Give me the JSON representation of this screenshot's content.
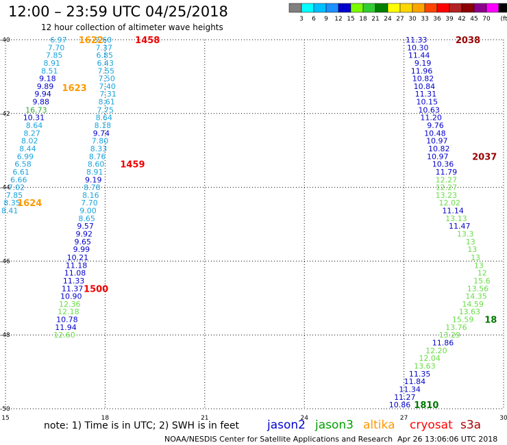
{
  "header": {
    "title": "12:00 – 23:59 UTC 04/25/2018",
    "subtitle": "12 hour collection of altimeter wave heights"
  },
  "color_scale": {
    "labels": [
      "3",
      "6",
      "9",
      "12",
      "15",
      "18",
      "21",
      "24",
      "27",
      "30",
      "33",
      "36",
      "39",
      "42",
      "45",
      "70"
    ],
    "unit": "(ft)",
    "colors": [
      "#808080",
      "#00ffff",
      "#00bfff",
      "#1e90ff",
      "#0000cd",
      "#7cfc00",
      "#32cd32",
      "#008000",
      "#ffff00",
      "#ffd700",
      "#ffa500",
      "#ff4500",
      "#ff0000",
      "#b22222",
      "#8b0000",
      "#8b008b",
      "#ff00ff",
      "#000000"
    ]
  },
  "footer": {
    "note": "note: 1) Time is in UTC; 2) SWH is in feet",
    "credit": "NOAA/NESDIS Center for Satellite Applications and Research",
    "timestamp": "Apr 26 13:06:06 UTC 2018"
  },
  "chart_data": {
    "type": "scatter",
    "xlim": [
      15,
      30
    ],
    "ylim": [
      -50,
      -40
    ],
    "x_ticks": [
      15,
      18,
      21,
      24,
      27,
      30
    ],
    "y_ticks": [
      -40,
      -42,
      -44,
      -46,
      -48,
      -50
    ],
    "grid": true,
    "legend_position": "bottom",
    "series": [
      {
        "name": "jason2",
        "color": "#0000cc"
      },
      {
        "name": "jason3",
        "color": "#00a000"
      },
      {
        "name": "altika",
        "color": "#ff9900"
      },
      {
        "name": "cryosat",
        "color": "#ff0000"
      },
      {
        "name": "s3a",
        "color": "#aa0000"
      }
    ],
    "points": [
      {
        "x": 16.85,
        "y": -40.0,
        "v": "6.97",
        "c": "#1aa3dd"
      },
      {
        "x": 16.78,
        "y": -40.21,
        "v": "7.70",
        "c": "#1aa3dd"
      },
      {
        "x": 16.72,
        "y": -40.42,
        "v": "7.85",
        "c": "#1aa3dd"
      },
      {
        "x": 16.65,
        "y": -40.63,
        "v": "8.91",
        "c": "#1aa3dd"
      },
      {
        "x": 16.58,
        "y": -40.84,
        "v": "8.51",
        "c": "#1aa3dd"
      },
      {
        "x": 16.52,
        "y": -41.05,
        "v": "9.18",
        "c": "#0000cc"
      },
      {
        "x": 16.45,
        "y": -41.26,
        "v": "9.89",
        "c": "#0000cc"
      },
      {
        "x": 16.38,
        "y": -41.47,
        "v": "9.94",
        "c": "#0000cc"
      },
      {
        "x": 16.32,
        "y": -41.68,
        "v": "9.88",
        "c": "#0000cc"
      },
      {
        "x": 16.25,
        "y": -41.9,
        "v": "16.73",
        "c": "#33aa33"
      },
      {
        "x": 16.18,
        "y": -42.11,
        "v": "10.31",
        "c": "#0000cc"
      },
      {
        "x": 16.12,
        "y": -42.32,
        "v": "8.64",
        "c": "#1aa3dd"
      },
      {
        "x": 16.05,
        "y": -42.53,
        "v": "8.27",
        "c": "#1aa3dd"
      },
      {
        "x": 15.98,
        "y": -42.74,
        "v": "8.02",
        "c": "#1aa3dd"
      },
      {
        "x": 15.92,
        "y": -42.95,
        "v": "8.44",
        "c": "#1aa3dd"
      },
      {
        "x": 15.85,
        "y": -43.16,
        "v": "6.99",
        "c": "#1aa3dd"
      },
      {
        "x": 15.78,
        "y": -43.37,
        "v": "6.58",
        "c": "#1aa3dd"
      },
      {
        "x": 15.72,
        "y": -43.58,
        "v": "6.61",
        "c": "#1aa3dd"
      },
      {
        "x": 15.65,
        "y": -43.79,
        "v": "6.66",
        "c": "#1aa3dd"
      },
      {
        "x": 15.58,
        "y": -44.0,
        "v": "7.02",
        "c": "#1aa3dd"
      },
      {
        "x": 15.52,
        "y": -44.21,
        "v": "7.85",
        "c": "#1aa3dd"
      },
      {
        "x": 15.45,
        "y": -44.42,
        "v": "8.35",
        "c": "#1aa3dd"
      },
      {
        "x": 15.38,
        "y": -44.63,
        "v": "8.41",
        "c": "#1aa3dd"
      },
      {
        "x": 18.2,
        "y": -40.0,
        "v": "7.60",
        "c": "#1aa3dd"
      },
      {
        "x": 18.22,
        "y": -40.21,
        "v": "7.37",
        "c": "#1aa3dd"
      },
      {
        "x": 18.24,
        "y": -40.42,
        "v": "6.85",
        "c": "#1aa3dd"
      },
      {
        "x": 18.26,
        "y": -40.63,
        "v": "6.43",
        "c": "#1aa3dd"
      },
      {
        "x": 18.28,
        "y": -40.84,
        "v": "7.55",
        "c": "#1aa3dd"
      },
      {
        "x": 18.3,
        "y": -41.05,
        "v": "7.50",
        "c": "#1aa3dd"
      },
      {
        "x": 18.32,
        "y": -41.26,
        "v": "7.40",
        "c": "#1aa3dd"
      },
      {
        "x": 18.34,
        "y": -41.47,
        "v": "7.31",
        "c": "#1aa3dd"
      },
      {
        "x": 18.3,
        "y": -41.68,
        "v": "8.61",
        "c": "#1aa3dd"
      },
      {
        "x": 18.26,
        "y": -41.9,
        "v": "7.75",
        "c": "#1aa3dd"
      },
      {
        "x": 18.22,
        "y": -42.11,
        "v": "8.64",
        "c": "#1aa3dd"
      },
      {
        "x": 18.18,
        "y": -42.32,
        "v": "8.18",
        "c": "#1aa3dd"
      },
      {
        "x": 18.14,
        "y": -42.53,
        "v": "9.74",
        "c": "#0000cc"
      },
      {
        "x": 18.1,
        "y": -42.74,
        "v": "7.80",
        "c": "#1aa3dd"
      },
      {
        "x": 18.06,
        "y": -42.95,
        "v": "8.33",
        "c": "#1aa3dd"
      },
      {
        "x": 18.02,
        "y": -43.16,
        "v": "8.76",
        "c": "#1aa3dd"
      },
      {
        "x": 17.98,
        "y": -43.37,
        "v": "8.60",
        "c": "#1aa3dd"
      },
      {
        "x": 17.94,
        "y": -43.58,
        "v": "8.91",
        "c": "#1aa3dd"
      },
      {
        "x": 17.9,
        "y": -43.79,
        "v": "9.19",
        "c": "#0000cc"
      },
      {
        "x": 17.86,
        "y": -44.0,
        "v": "8.78",
        "c": "#1aa3dd"
      },
      {
        "x": 17.82,
        "y": -44.21,
        "v": "8.16",
        "c": "#1aa3dd"
      },
      {
        "x": 17.78,
        "y": -44.42,
        "v": "7.70",
        "c": "#1aa3dd"
      },
      {
        "x": 17.74,
        "y": -44.63,
        "v": "9.00",
        "c": "#1aa3dd"
      },
      {
        "x": 17.7,
        "y": -44.84,
        "v": "8.65",
        "c": "#1aa3dd"
      },
      {
        "x": 17.66,
        "y": -45.05,
        "v": "9.57",
        "c": "#0000cc"
      },
      {
        "x": 17.62,
        "y": -45.26,
        "v": "9.92",
        "c": "#0000cc"
      },
      {
        "x": 17.58,
        "y": -45.47,
        "v": "9.65",
        "c": "#0000cc"
      },
      {
        "x": 17.54,
        "y": -45.68,
        "v": "9.99",
        "c": "#0000cc"
      },
      {
        "x": 17.5,
        "y": -45.9,
        "v": "10.21",
        "c": "#0000cc"
      },
      {
        "x": 17.46,
        "y": -46.11,
        "v": "11.18",
        "c": "#0000cc"
      },
      {
        "x": 17.42,
        "y": -46.32,
        "v": "11.08",
        "c": "#0000cc"
      },
      {
        "x": 17.38,
        "y": -46.53,
        "v": "11.33",
        "c": "#0000cc"
      },
      {
        "x": 17.34,
        "y": -46.74,
        "v": "11.37",
        "c": "#0000cc"
      },
      {
        "x": 17.3,
        "y": -46.95,
        "v": "10.90",
        "c": "#0000cc"
      },
      {
        "x": 17.26,
        "y": -47.16,
        "v": "12.36",
        "c": "#66dd44"
      },
      {
        "x": 17.22,
        "y": -47.37,
        "v": "12.18",
        "c": "#66dd44"
      },
      {
        "x": 17.18,
        "y": -47.58,
        "v": "10.78",
        "c": "#0000cc"
      },
      {
        "x": 17.14,
        "y": -47.79,
        "v": "11.94",
        "c": "#0000cc"
      },
      {
        "x": 17.1,
        "y": -48.0,
        "v": "12.60",
        "c": "#66dd44"
      },
      {
        "x": 27.7,
        "y": -40.0,
        "v": "11.33",
        "c": "#0000cc"
      },
      {
        "x": 27.74,
        "y": -40.21,
        "v": "10.30",
        "c": "#0000cc"
      },
      {
        "x": 27.78,
        "y": -40.42,
        "v": "11.44",
        "c": "#0000cc"
      },
      {
        "x": 27.82,
        "y": -40.63,
        "v": "9.19",
        "c": "#0000cc"
      },
      {
        "x": 27.86,
        "y": -40.84,
        "v": "11.96",
        "c": "#0000cc"
      },
      {
        "x": 27.9,
        "y": -41.05,
        "v": "10.82",
        "c": "#0000cc"
      },
      {
        "x": 27.94,
        "y": -41.26,
        "v": "10.84",
        "c": "#0000cc"
      },
      {
        "x": 27.98,
        "y": -41.47,
        "v": "11.31",
        "c": "#0000cc"
      },
      {
        "x": 28.02,
        "y": -41.68,
        "v": "10.15",
        "c": "#0000cc"
      },
      {
        "x": 28.08,
        "y": -41.9,
        "v": "10.63",
        "c": "#0000cc"
      },
      {
        "x": 28.14,
        "y": -42.11,
        "v": "11.20",
        "c": "#0000cc"
      },
      {
        "x": 28.2,
        "y": -42.32,
        "v": "9.76",
        "c": "#0000cc"
      },
      {
        "x": 28.26,
        "y": -42.53,
        "v": "10.48",
        "c": "#0000cc"
      },
      {
        "x": 28.32,
        "y": -42.74,
        "v": "10.97",
        "c": "#0000cc"
      },
      {
        "x": 28.38,
        "y": -42.95,
        "v": "10.82",
        "c": "#0000cc"
      },
      {
        "x": 28.34,
        "y": -43.16,
        "v": "10.97",
        "c": "#0000cc"
      },
      {
        "x": 28.5,
        "y": -43.37,
        "v": "10.36",
        "c": "#0000cc"
      },
      {
        "x": 28.6,
        "y": -43.58,
        "v": "11.79",
        "c": "#0000cc"
      },
      {
        "x": 28.6,
        "y": -43.79,
        "v": "12.27",
        "c": "#66dd44"
      },
      {
        "x": 28.6,
        "y": -44.0,
        "v": "12.27",
        "c": "#66dd44"
      },
      {
        "x": 28.6,
        "y": -44.21,
        "v": "13.23",
        "c": "#66dd44"
      },
      {
        "x": 28.7,
        "y": -44.42,
        "v": "12.02",
        "c": "#66dd44"
      },
      {
        "x": 28.8,
        "y": -44.63,
        "v": "11.14",
        "c": "#0000cc"
      },
      {
        "x": 28.9,
        "y": -44.84,
        "v": "13.13",
        "c": "#66dd44"
      },
      {
        "x": 29.0,
        "y": -45.05,
        "v": "11.47",
        "c": "#0000cc"
      },
      {
        "x": 29.1,
        "y": -45.26,
        "v": "13.3",
        "c": "#66dd44"
      },
      {
        "x": 29.15,
        "y": -45.47,
        "v": "13",
        "c": "#66dd44"
      },
      {
        "x": 29.2,
        "y": -45.68,
        "v": "13",
        "c": "#66dd44"
      },
      {
        "x": 29.3,
        "y": -45.9,
        "v": "13",
        "c": "#66dd44"
      },
      {
        "x": 29.4,
        "y": -46.11,
        "v": "13",
        "c": "#66dd44"
      },
      {
        "x": 29.5,
        "y": -46.32,
        "v": "12",
        "c": "#66dd44"
      },
      {
        "x": 29.6,
        "y": -46.53,
        "v": "15.6",
        "c": "#66dd44"
      },
      {
        "x": 29.55,
        "y": -46.74,
        "v": "13.56",
        "c": "#66dd44"
      },
      {
        "x": 29.5,
        "y": -46.95,
        "v": "14.35",
        "c": "#66dd44"
      },
      {
        "x": 29.4,
        "y": -47.16,
        "v": "14.59",
        "c": "#66dd44"
      },
      {
        "x": 29.3,
        "y": -47.37,
        "v": "13.63",
        "c": "#66dd44"
      },
      {
        "x": 29.1,
        "y": -47.58,
        "v": "15.59",
        "c": "#66dd44"
      },
      {
        "x": 28.9,
        "y": -47.79,
        "v": "13.76",
        "c": "#66dd44"
      },
      {
        "x": 28.7,
        "y": -48.0,
        "v": "13.29",
        "c": "#66dd44"
      },
      {
        "x": 28.5,
        "y": -48.21,
        "v": "11.86",
        "c": "#0000cc"
      },
      {
        "x": 28.3,
        "y": -48.42,
        "v": "12.20",
        "c": "#66dd44"
      },
      {
        "x": 28.1,
        "y": -48.63,
        "v": "12.04",
        "c": "#66dd44"
      },
      {
        "x": 27.95,
        "y": -48.84,
        "v": "13.63",
        "c": "#66dd44"
      },
      {
        "x": 27.8,
        "y": -49.05,
        "v": "11.35",
        "c": "#0000cc"
      },
      {
        "x": 27.65,
        "y": -49.26,
        "v": "11.84",
        "c": "#0000cc"
      },
      {
        "x": 27.5,
        "y": -49.47,
        "v": "11.34",
        "c": "#0000cc"
      },
      {
        "x": 27.35,
        "y": -49.68,
        "v": "11.27",
        "c": "#0000cc"
      },
      {
        "x": 27.2,
        "y": -49.89,
        "v": "10.86",
        "c": "#0000cc"
      }
    ],
    "time_labels": [
      {
        "x": 17.95,
        "y": -40.0,
        "t": "1622",
        "c": "#ff9900"
      },
      {
        "x": 19.65,
        "y": -40.0,
        "t": "1458",
        "c": "#ee0000"
      },
      {
        "x": 17.45,
        "y": -41.3,
        "t": "1623",
        "c": "#ff9900"
      },
      {
        "x": 19.2,
        "y": -43.37,
        "t": "1459",
        "c": "#ee0000"
      },
      {
        "x": 16.1,
        "y": -44.42,
        "t": "1624",
        "c": "#ff9900"
      },
      {
        "x": 18.1,
        "y": -46.74,
        "t": "1500",
        "c": "#ee0000"
      },
      {
        "x": 29.3,
        "y": -40.0,
        "t": "2038",
        "c": "#990000"
      },
      {
        "x": 29.8,
        "y": -43.16,
        "t": "2037",
        "c": "#990000"
      },
      {
        "x": 29.8,
        "y": -47.58,
        "t": "18",
        "c": "#007700"
      },
      {
        "x": 28.05,
        "y": -49.89,
        "t": "1810",
        "c": "#007700"
      }
    ]
  }
}
